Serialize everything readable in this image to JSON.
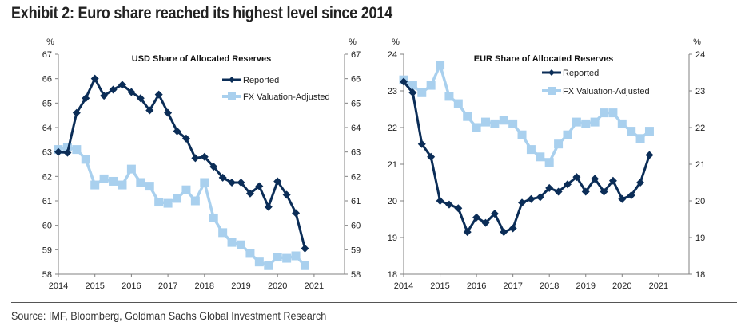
{
  "title": "Exhibit 2: Euro share reached its highest level since 2014",
  "source": "Source: IMF, Bloomberg, Goldman Sachs Global Investment Research",
  "colors": {
    "reported": "#0b2d57",
    "fx_adjusted": "#a9d0ee",
    "axis": "#808080"
  },
  "chart_data": [
    {
      "type": "line",
      "title": "USD Share of Allocated Reserves",
      "ylabel_left": "%",
      "ylabel_right": "%",
      "ylim": [
        58,
        67
      ],
      "yticks": [
        58,
        59,
        60,
        61,
        62,
        63,
        64,
        65,
        66,
        67
      ],
      "xlim": [
        2014,
        2021.85
      ],
      "xticks": [
        2014,
        2015,
        2016,
        2017,
        2018,
        2019,
        2020,
        2021
      ],
      "legend": [
        "Reported",
        "FX Valuation-Adjusted"
      ],
      "legend_position": "top-right",
      "x": [
        2014.0,
        2014.25,
        2014.5,
        2014.75,
        2015.0,
        2015.25,
        2015.5,
        2015.75,
        2016.0,
        2016.25,
        2016.5,
        2016.75,
        2017.0,
        2017.25,
        2017.5,
        2017.75,
        2018.0,
        2018.25,
        2018.5,
        2018.75,
        2019.0,
        2019.25,
        2019.5,
        2019.75,
        2020.0,
        2020.25,
        2020.5,
        2020.75
      ],
      "series": [
        {
          "name": "Reported",
          "values": [
            63.0,
            62.97,
            64.6,
            65.2,
            66.0,
            65.3,
            65.55,
            65.75,
            65.45,
            65.2,
            64.7,
            65.35,
            64.6,
            63.85,
            63.55,
            62.75,
            62.8,
            62.4,
            61.95,
            61.75,
            61.75,
            61.3,
            61.6,
            60.75,
            61.8,
            61.25,
            60.5,
            59.05
          ]
        },
        {
          "name": "FX Valuation-Adjusted",
          "values": [
            63.1,
            63.2,
            63.1,
            62.7,
            61.65,
            61.9,
            61.8,
            61.65,
            62.3,
            61.75,
            61.6,
            60.95,
            60.9,
            61.1,
            61.45,
            61.0,
            61.75,
            60.3,
            59.7,
            59.3,
            59.2,
            58.85,
            58.5,
            58.35,
            58.7,
            58.65,
            58.75,
            58.35
          ]
        }
      ]
    },
    {
      "type": "line",
      "title": "EUR Share of Allocated Reserves",
      "ylabel_left": "%",
      "ylabel_right": "%",
      "ylim": [
        18,
        24
      ],
      "yticks": [
        18,
        19,
        20,
        21,
        22,
        23,
        24
      ],
      "xlim": [
        2014,
        2021.85
      ],
      "xticks": [
        2014,
        2015,
        2016,
        2017,
        2018,
        2019,
        2020,
        2021
      ],
      "legend": [
        "Reported",
        "FX Valuation-Adjusted"
      ],
      "legend_position": "top-right",
      "x": [
        2014.0,
        2014.25,
        2014.5,
        2014.75,
        2015.0,
        2015.25,
        2015.5,
        2015.75,
        2016.0,
        2016.25,
        2016.5,
        2016.75,
        2017.0,
        2017.25,
        2017.5,
        2017.75,
        2018.0,
        2018.25,
        2018.5,
        2018.75,
        2019.0,
        2019.25,
        2019.5,
        2019.75,
        2020.0,
        2020.25,
        2020.5,
        2020.75
      ],
      "series": [
        {
          "name": "Reported",
          "values": [
            23.25,
            22.95,
            21.55,
            21.2,
            20.0,
            19.9,
            19.8,
            19.15,
            19.55,
            19.4,
            19.65,
            19.15,
            19.25,
            19.95,
            20.05,
            20.1,
            20.35,
            20.25,
            20.45,
            20.65,
            20.25,
            20.6,
            20.25,
            20.55,
            20.05,
            20.15,
            20.5,
            21.25
          ]
        },
        {
          "name": "FX Valuation-Adjusted",
          "values": [
            23.3,
            23.15,
            22.95,
            23.15,
            23.7,
            22.85,
            22.65,
            22.3,
            22.0,
            22.15,
            22.1,
            22.2,
            22.1,
            21.8,
            21.4,
            21.2,
            21.05,
            21.55,
            21.8,
            22.15,
            22.1,
            22.15,
            22.4,
            22.4,
            22.1,
            21.9,
            21.7,
            21.9
          ]
        }
      ]
    }
  ]
}
